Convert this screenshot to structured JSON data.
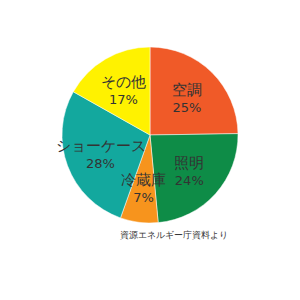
{
  "chart_data": {
    "type": "pie",
    "categories": [
      "空調",
      "照明",
      "冷蔵庫",
      "ショーケース",
      "その他"
    ],
    "values": [
      25,
      24,
      7,
      28,
      17
    ],
    "value_labels": [
      "25%",
      "24%",
      "7%",
      "28%",
      "17%"
    ],
    "colors": [
      "#f05a28",
      "#0e8c47",
      "#f7941d",
      "#13a89e",
      "#fff200"
    ],
    "data_labels": true,
    "annotations": [
      "資源エネルギー庁資料より"
    ]
  }
}
